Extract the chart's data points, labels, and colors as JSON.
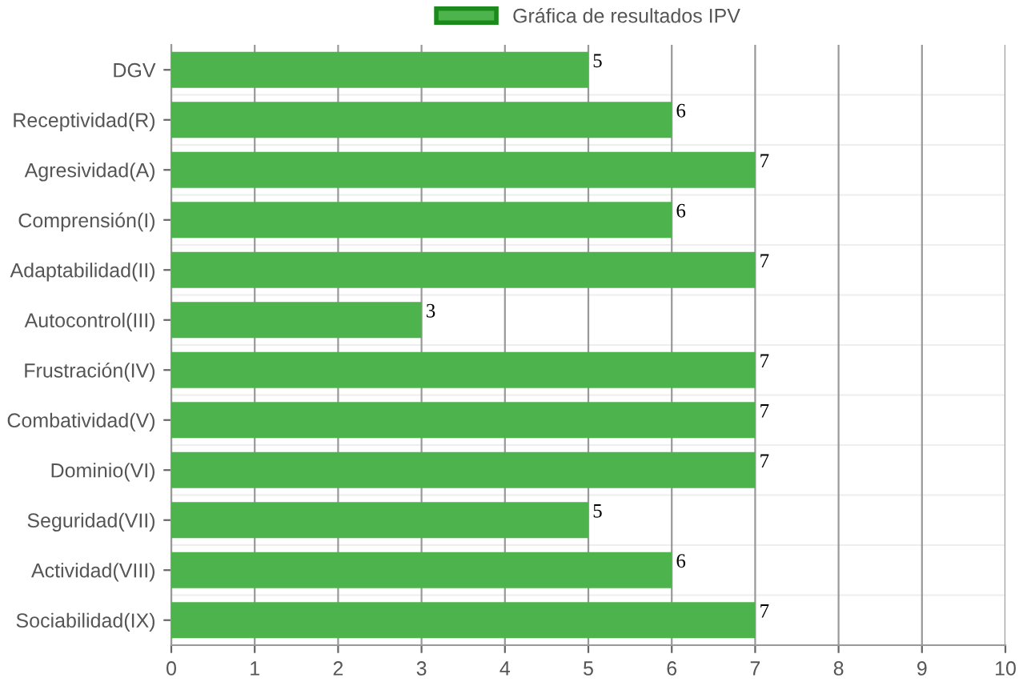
{
  "chart_data": {
    "type": "bar",
    "orientation": "horizontal",
    "categories": [
      "DGV",
      "Receptividad(R)",
      "Agresividad(A)",
      "Comprensión(I)",
      "Adaptabilidad(II)",
      "Autocontrol(III)",
      "Frustración(IV)",
      "Combatividad(V)",
      "Dominio(VI)",
      "Seguridad(VII)",
      "Actividad(VIII)",
      "Sociabilidad(IX)"
    ],
    "series": [
      {
        "name": "Gráfica de resultados IPV",
        "color": "#4db34d",
        "values": [
          5,
          6,
          7,
          6,
          7,
          3,
          7,
          7,
          7,
          5,
          6,
          7
        ]
      }
    ],
    "xlim": [
      0,
      10
    ],
    "xticks": [
      0,
      1,
      2,
      3,
      4,
      5,
      6,
      7,
      8,
      9,
      10
    ],
    "grid": true,
    "legend": "top",
    "data_labels": true
  }
}
